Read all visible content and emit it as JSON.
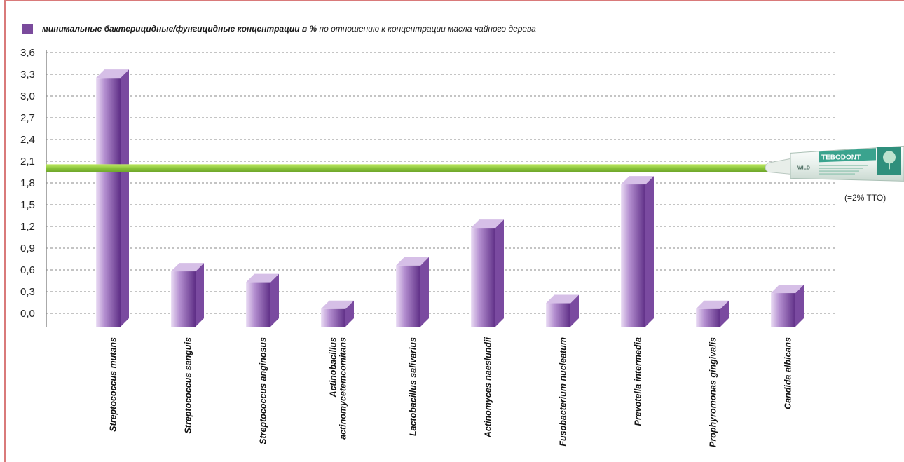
{
  "legend": {
    "bold_text": "минимальные бактерицидные/фунгицидные концентрации в %",
    "rest_text": " по отношению к концентрации масла чайного дерева",
    "swatch_color": "#7a4a9c"
  },
  "reference": {
    "value": 2.0,
    "label": "(=2% TTO)",
    "product_logo_text": "TEBODONT",
    "brand_text": "WILD",
    "line_color": "#9ad23c"
  },
  "chart_data": {
    "type": "bar",
    "title": "",
    "xlabel": "",
    "ylabel": "",
    "ylim": [
      0,
      3.6
    ],
    "yticks": [
      "0,0",
      "0,3",
      "0,6",
      "0,9",
      "1,2",
      "1,5",
      "1,8",
      "2,1",
      "2,4",
      "2,7",
      "3,0",
      "3,3",
      "3,6"
    ],
    "grid": "horizontal dashed",
    "bar_color": "#8b5cb0",
    "categories": [
      [
        "Streptococcus mutans"
      ],
      [
        "Streptococcus sanguis"
      ],
      [
        "Streptococcus anginosus"
      ],
      [
        "Actinobacillus",
        "actinomycetemcomitans"
      ],
      [
        "Lactobacillus salivarius"
      ],
      [
        "Actinomyces naeslundii"
      ],
      [
        "Fusobacterium nucleatum"
      ],
      [
        "Prevotella intermedia"
      ],
      [
        "Prophyromonas gingivalis"
      ],
      [
        "Candida albicans"
      ]
    ],
    "values": [
      3.25,
      0.58,
      0.43,
      0.06,
      0.66,
      1.18,
      0.14,
      1.78,
      0.06,
      0.28
    ]
  }
}
